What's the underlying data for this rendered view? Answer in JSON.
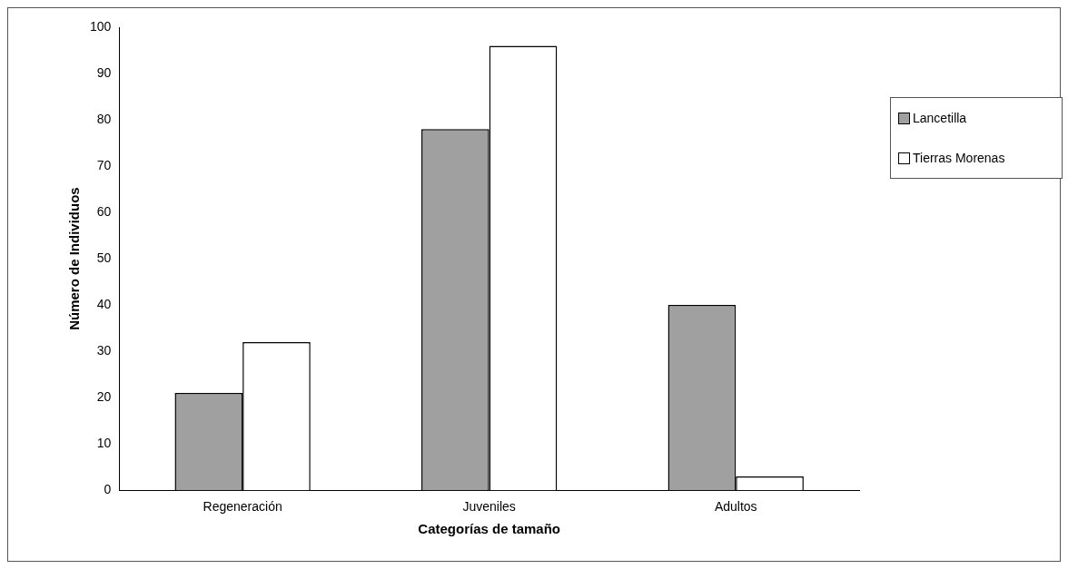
{
  "chart_data": {
    "type": "bar",
    "xlabel": "Categorías de tamaño",
    "ylabel": "Número de Individuos",
    "categories": [
      "Regeneración",
      "Juveniles",
      "Adultos"
    ],
    "series": [
      {
        "name": "Lancetilla",
        "color": "#a0a0a0",
        "values": [
          21,
          78,
          40
        ]
      },
      {
        "name": "Tierras Morenas",
        "color": "#ffffff",
        "values": [
          32,
          96,
          3
        ]
      }
    ],
    "ylim": [
      0,
      100
    ],
    "yticks": [
      0,
      10,
      20,
      30,
      40,
      50,
      60,
      70,
      80,
      90,
      100
    ],
    "legend": "right"
  }
}
